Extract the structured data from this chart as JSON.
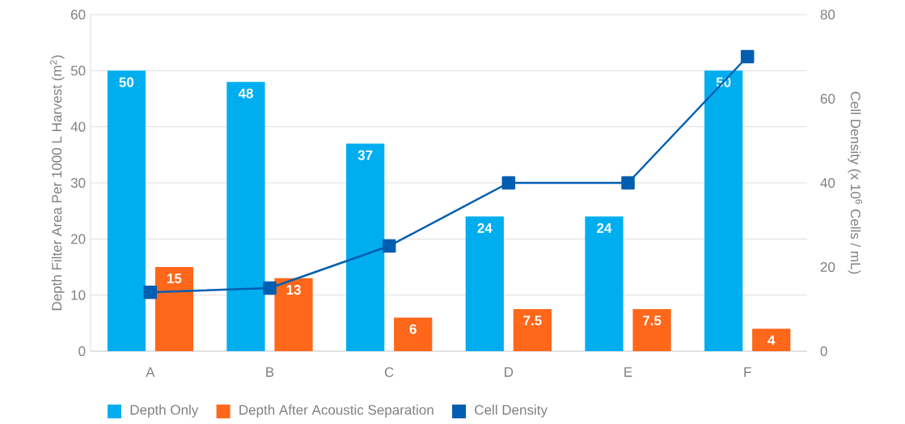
{
  "chart_data": {
    "type": "bar",
    "ylabel": "Depth Filter Area Per 1000 L Harvest  (m$^{2}$)",
    "y2label": "Cell Density (x 10$^{6}$ Cells / mL)",
    "categories": [
      "A",
      "B",
      "C",
      "D",
      "E",
      "F"
    ],
    "series": [
      {
        "name": "Depth Only",
        "color": "#00aeef",
        "values": [
          50,
          48,
          37,
          24,
          24,
          50
        ],
        "value_labels": [
          "50",
          "48",
          "37",
          "24",
          "24",
          "50"
        ]
      },
      {
        "name": "Depth After Acoustic Separation",
        "color": "#ff671b",
        "values": [
          15,
          13,
          6,
          7.5,
          7.5,
          4
        ],
        "value_labels": [
          "15",
          "13",
          "6",
          "7.5",
          "7.5",
          "4"
        ]
      },
      {
        "name": "Cell Density",
        "type": "line",
        "axis": "y2",
        "marker": "square",
        "color": "#005eb0",
        "values": [
          14,
          15,
          25,
          40,
          40,
          70
        ]
      }
    ],
    "ylim": [
      0,
      60
    ],
    "yticks": [
      0,
      10,
      20,
      30,
      40,
      50,
      60
    ],
    "y2lim": [
      0,
      80
    ],
    "y2ticks": [
      0,
      20,
      40,
      60,
      80
    ],
    "grid": "y",
    "legend": "bottom"
  }
}
